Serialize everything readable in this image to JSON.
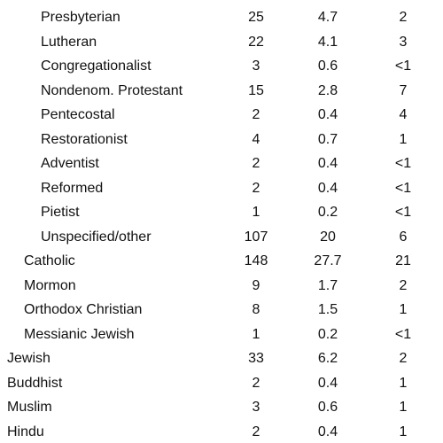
{
  "table": {
    "rows": [
      [
        "Presbyterian",
        "25",
        "4.7",
        "2"
      ],
      [
        "Lutheran",
        "22",
        "4.1",
        "3"
      ],
      [
        "Congregationalist",
        "3",
        "0.6",
        "<1"
      ],
      [
        "Nondenom. Protestant",
        "15",
        "2.8",
        "7"
      ],
      [
        "Pentecostal",
        "2",
        "0.4",
        "4"
      ],
      [
        "Restorationist",
        "4",
        "0.7",
        "1"
      ],
      [
        "Adventist",
        "2",
        "0.4",
        "<1"
      ],
      [
        "Reformed",
        "2",
        "0.4",
        "<1"
      ],
      [
        "Pietist",
        "1",
        "0.2",
        "<1"
      ],
      [
        "Unspecified/other",
        "107",
        "20",
        "6"
      ],
      [
        "Catholic",
        "148",
        "27.7",
        "21"
      ],
      [
        "Mormon",
        "9",
        "1.7",
        "2"
      ],
      [
        "Orthodox Christian",
        "8",
        "1.5",
        "1"
      ],
      [
        "Messianic Jewish",
        "1",
        "0.2",
        "<1"
      ],
      [
        "Jewish",
        "33",
        "6.2",
        "2"
      ],
      [
        "Buddhist",
        "2",
        "0.4",
        "1"
      ],
      [
        "Muslim",
        "3",
        "0.6",
        "1"
      ],
      [
        "Hindu",
        "2",
        "0.4",
        "1"
      ]
    ]
  }
}
